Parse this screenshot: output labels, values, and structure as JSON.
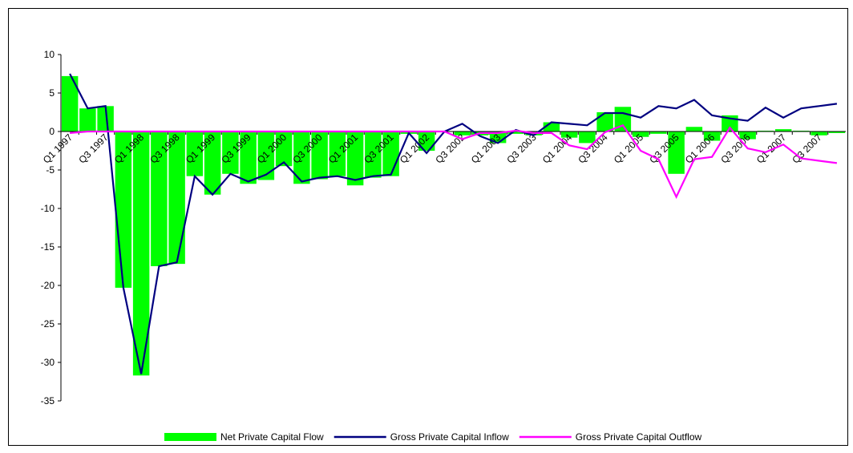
{
  "chart_data": {
    "type": "bar-line",
    "categories": [
      "Q1 1997",
      null,
      "Q3 1997",
      null,
      "Q1 1998",
      null,
      "Q3 1998",
      null,
      "Q1 1999",
      null,
      "Q3 1999",
      null,
      "Q1 2000",
      null,
      "Q3 2000",
      null,
      "Q1 2001",
      null,
      "Q3 2001",
      null,
      "Q1 2002",
      null,
      "Q3 2002",
      null,
      "Q1 2003",
      null,
      "Q3 2003",
      null,
      "Q1 2004",
      null,
      "Q3 2004",
      null,
      "Q1 2005",
      null,
      "Q3 2005",
      null,
      "Q1 2006",
      null,
      "Q3 2006",
      null,
      "Q1 2007",
      null,
      "Q3 2007",
      null
    ],
    "series": [
      {
        "name": "Net Private Capital Flow",
        "kind": "bar",
        "color": "#00ff00",
        "values": [
          7.2,
          3.0,
          3.3,
          -20.3,
          -31.7,
          -17.5,
          -17.2,
          -5.8,
          -8.2,
          -5.5,
          -6.8,
          -6.3,
          -4.5,
          -6.8,
          -6.2,
          -5.8,
          -7.0,
          -6.0,
          -5.8,
          -0.3,
          -2.5,
          0,
          -0.5,
          -0.5,
          -1.5,
          -0.3,
          -0.5,
          1.2,
          -0.8,
          -1.5,
          2.5,
          3.2,
          -0.7,
          -0.3,
          -5.5,
          0.6,
          -1.2,
          2.1,
          -1.0,
          0.1,
          0.3,
          0.1,
          -0.5,
          -0.2
        ]
      },
      {
        "name": "Gross Private Capital Inflow",
        "kind": "line",
        "color": "#000080",
        "values": [
          7.5,
          3.0,
          3.3,
          -20.3,
          -31.5,
          -17.5,
          -17.0,
          -5.8,
          -8.2,
          -5.5,
          -6.5,
          -5.6,
          -4.0,
          -6.5,
          -6.0,
          -5.8,
          -6.3,
          -5.8,
          -5.6,
          -0.2,
          -2.8,
          0,
          1.0,
          -0.6,
          -1.5,
          0.2,
          -0.5,
          1.2,
          1.0,
          0.8,
          2.4,
          2.4,
          1.8,
          3.3,
          3.0,
          4.1,
          2.1,
          1.7,
          1.4,
          3.1,
          1.8,
          3.0,
          3.3,
          3.6
        ]
      },
      {
        "name": "Gross Private Capital Outflow",
        "kind": "line",
        "color": "#ff00ff",
        "values": [
          -0.2,
          0,
          0,
          0,
          0,
          0,
          0,
          0,
          0,
          0,
          0,
          0,
          0,
          0,
          0,
          0,
          0,
          0,
          0,
          0,
          0,
          0,
          -1.0,
          -0.2,
          -0.2,
          0.1,
          -0.2,
          -0.2,
          -1.8,
          -2.3,
          -0.1,
          0.8,
          -2.5,
          -3.6,
          -8.5,
          -3.6,
          -3.3,
          0.5,
          -2.2,
          -2.7,
          -1.7,
          -3.5,
          -3.8,
          -4.1
        ]
      }
    ],
    "ylim": [
      -35,
      10
    ],
    "yticks": [
      -35,
      -30,
      -25,
      -20,
      -15,
      -10,
      -5,
      0,
      5,
      10
    ]
  }
}
